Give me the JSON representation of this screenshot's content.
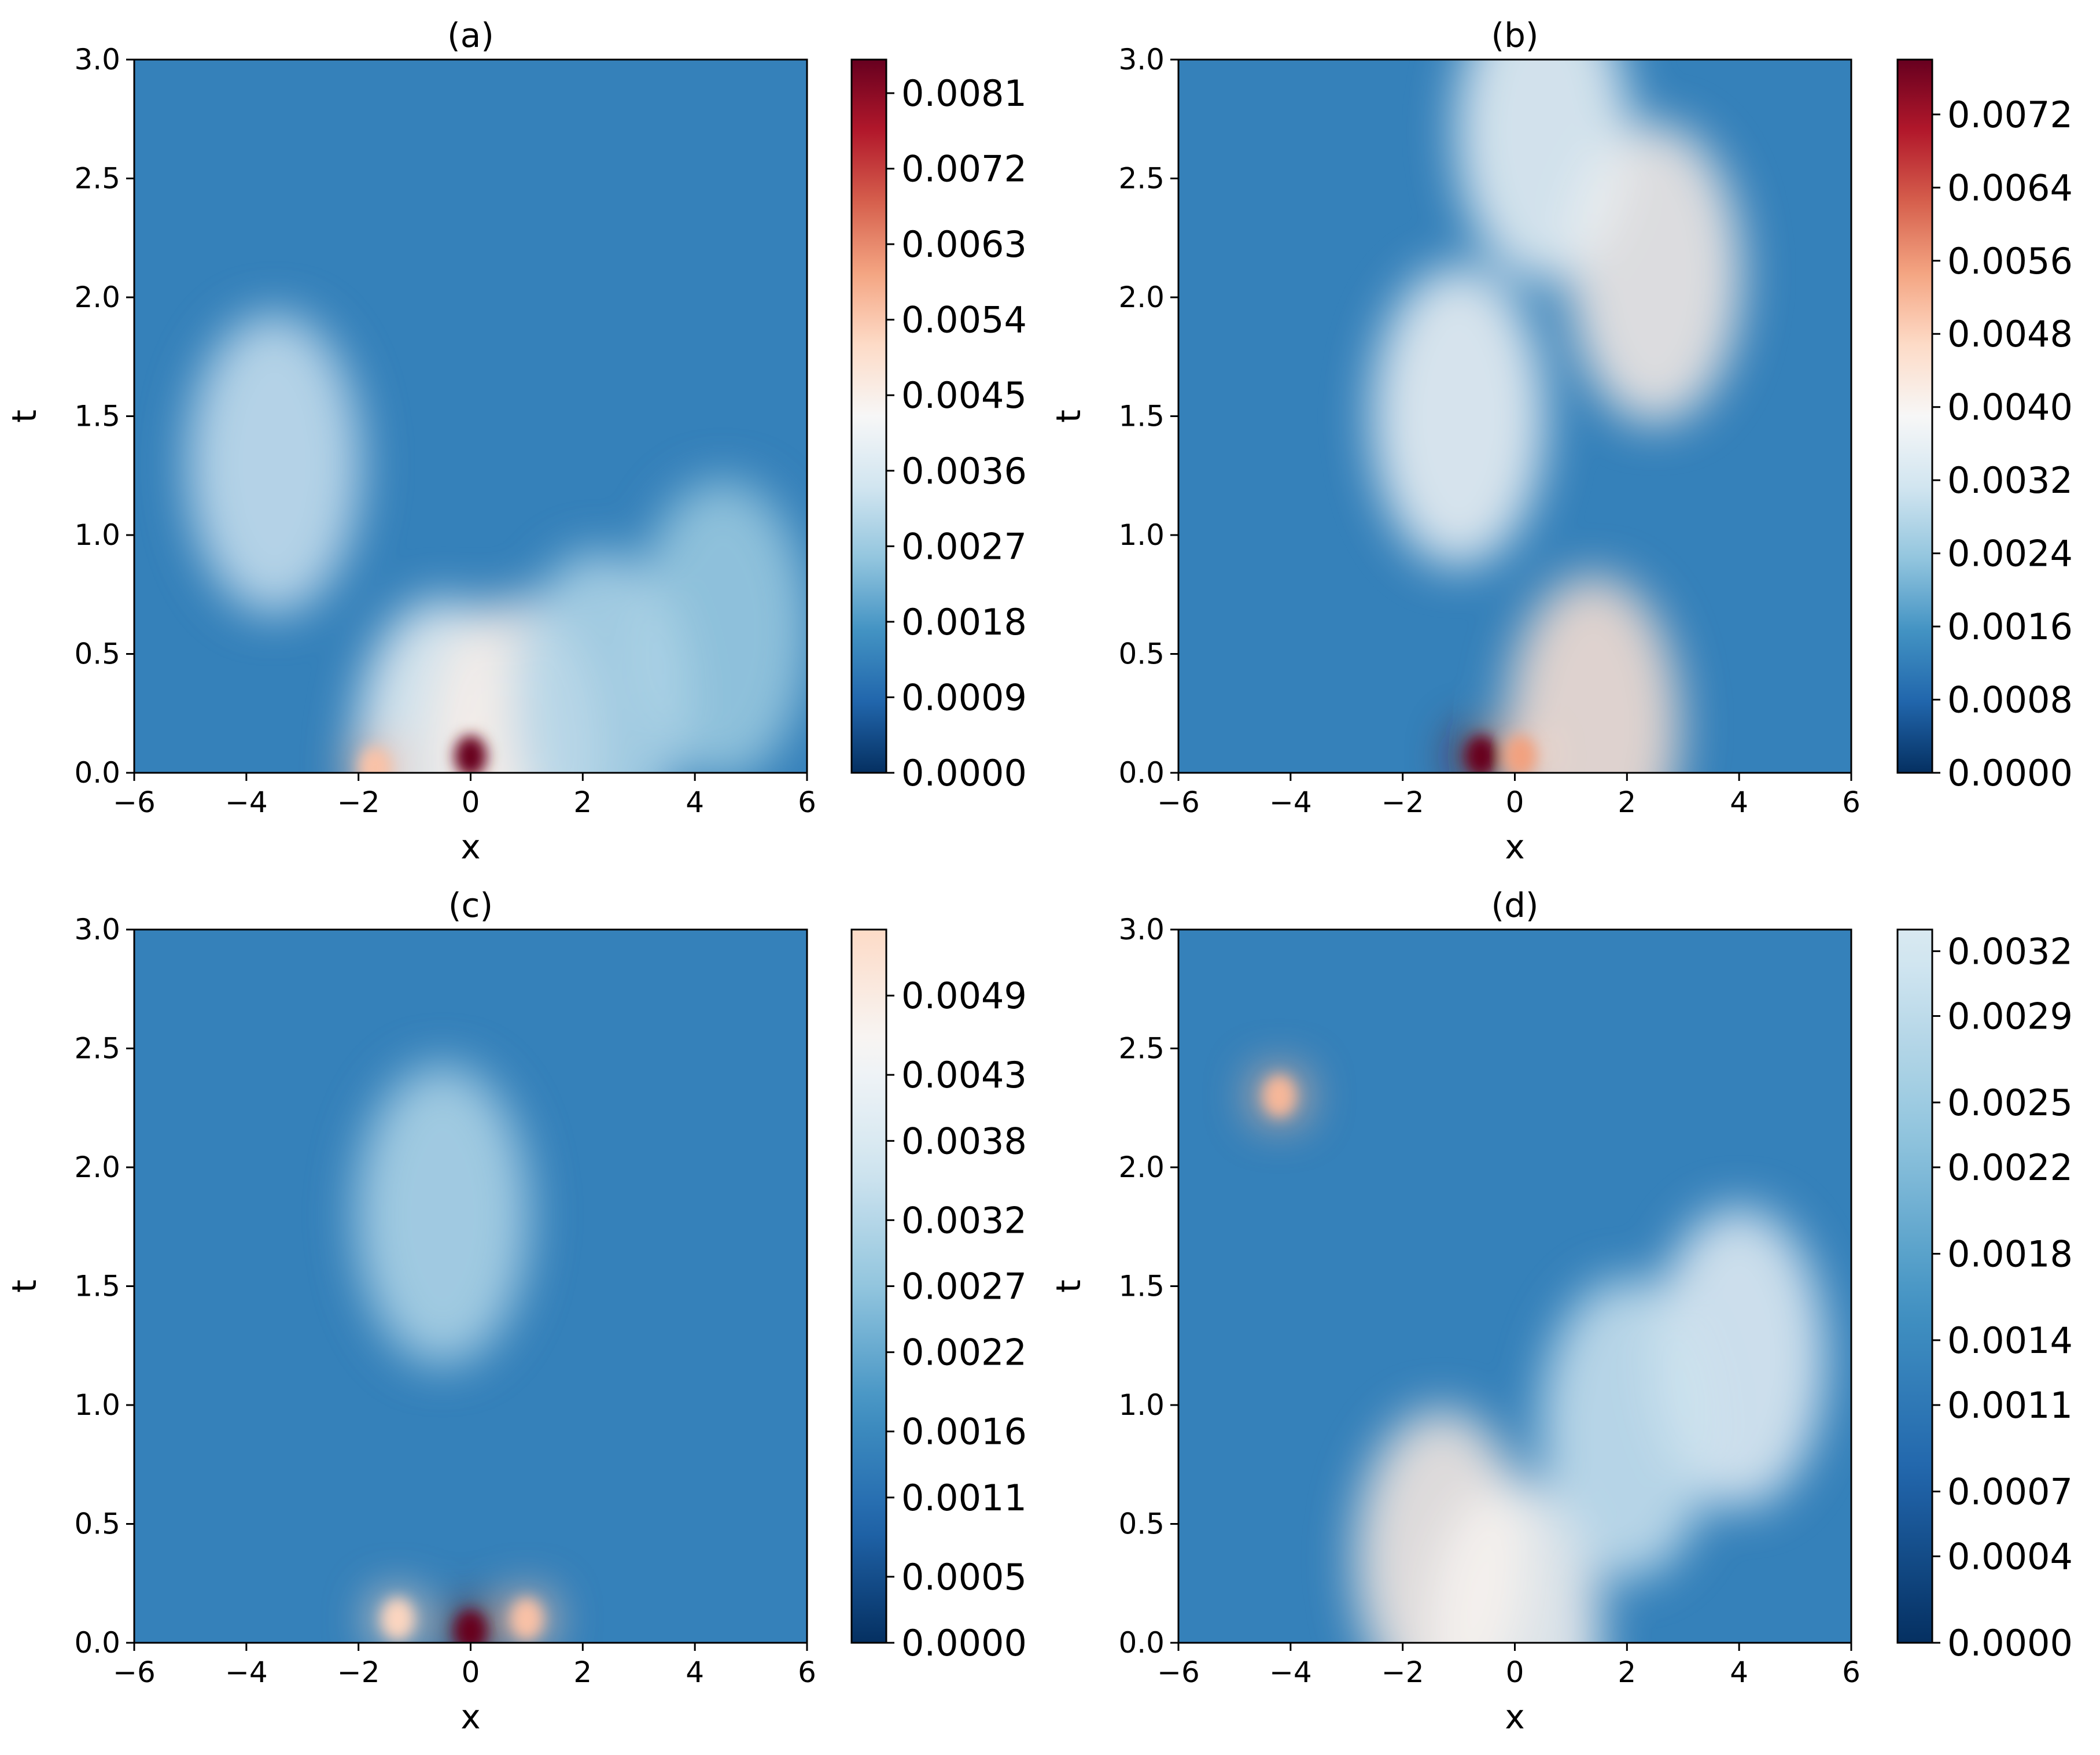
{
  "chart_data": [
    {
      "type": "heatmap",
      "title": "(a)",
      "xlabel": "x",
      "ylabel": "t",
      "xlim": [
        -6,
        6
      ],
      "ylim": [
        0,
        3
      ],
      "x_ticks": [
        "−6",
        "−4",
        "−2",
        "0",
        "2",
        "4",
        "6"
      ],
      "y_ticks": [
        "0.0",
        "0.5",
        "1.0",
        "1.5",
        "2.0",
        "2.5",
        "3.0"
      ],
      "colorbar": {
        "min": 0.0,
        "max": 0.0085,
        "ticks": [
          "0.0000",
          "0.0009",
          "0.0018",
          "0.0027",
          "0.0036",
          "0.0045",
          "0.0054",
          "0.0063",
          "0.0072",
          "0.0081"
        ],
        "colormap": "RdBu_r"
      },
      "hotspots": [
        {
          "x": 0.0,
          "t": 0.07,
          "value": 0.0085
        },
        {
          "x": -0.5,
          "t": 0.1,
          "value": 0.004
        },
        {
          "x": 0.8,
          "t": 0.1,
          "value": 0.0045
        },
        {
          "x": -1.7,
          "t": 0.02,
          "value": 0.0055
        },
        {
          "x": -3.5,
          "t": 1.3,
          "value": 0.0033
        },
        {
          "x": 4.5,
          "t": 0.6,
          "value": 0.0027
        },
        {
          "x": 2.3,
          "t": 0.3,
          "value": 0.003
        }
      ]
    },
    {
      "type": "heatmap",
      "title": "(b)",
      "xlabel": "x",
      "ylabel": "t",
      "xlim": [
        -6,
        6
      ],
      "ylim": [
        0,
        3
      ],
      "x_ticks": [
        "−6",
        "−4",
        "−2",
        "0",
        "2",
        "4",
        "6"
      ],
      "y_ticks": [
        "0.0",
        "0.5",
        "1.0",
        "1.5",
        "2.0",
        "2.5",
        "3.0"
      ],
      "colorbar": {
        "min": 0.0,
        "max": 0.0078,
        "ticks": [
          "0.0000",
          "0.0008",
          "0.0016",
          "0.0024",
          "0.0032",
          "0.0040",
          "0.0048",
          "0.0056",
          "0.0064",
          "0.0072"
        ],
        "colormap": "RdBu_r"
      },
      "hotspots": [
        {
          "x": -0.6,
          "t": 0.07,
          "value": 0.0078
        },
        {
          "x": 0.1,
          "t": 0.07,
          "value": 0.0055
        },
        {
          "x": 1.4,
          "t": 0.2,
          "value": 0.0045
        },
        {
          "x": -1.0,
          "t": 1.5,
          "value": 0.0038
        },
        {
          "x": 2.5,
          "t": 2.1,
          "value": 0.0042
        },
        {
          "x": 0.5,
          "t": 2.7,
          "value": 0.0037
        }
      ]
    },
    {
      "type": "heatmap",
      "title": "(c)",
      "xlabel": "x",
      "ylabel": "t",
      "xlim": [
        -6,
        6
      ],
      "ylim": [
        0,
        3
      ],
      "x_ticks": [
        "−6",
        "−4",
        "−2",
        "0",
        "2",
        "4",
        "6"
      ],
      "y_ticks": [
        "0.0",
        "0.5",
        "1.0",
        "1.5",
        "2.0",
        "2.5",
        "3.0"
      ],
      "colorbar": {
        "min": 0.0,
        "max": 0.0054,
        "ticks": [
          "0.0000",
          "0.0005",
          "0.0011",
          "0.0016",
          "0.0022",
          "0.0027",
          "0.0032",
          "0.0038",
          "0.0043",
          "0.0049"
        ],
        "colormap": "RdBu_r"
      },
      "hotspots": [
        {
          "x": 0.0,
          "t": 0.05,
          "value": 0.0054
        },
        {
          "x": -1.3,
          "t": 0.1,
          "value": 0.0033
        },
        {
          "x": 1.0,
          "t": 0.1,
          "value": 0.0035
        },
        {
          "x": -0.5,
          "t": 1.8,
          "value": 0.0019
        }
      ]
    },
    {
      "type": "heatmap",
      "title": "(d)",
      "xlabel": "x",
      "ylabel": "t",
      "xlim": [
        -6,
        6
      ],
      "ylim": [
        0,
        3
      ],
      "x_ticks": [
        "−6",
        "−4",
        "−2",
        "0",
        "2",
        "4",
        "6"
      ],
      "y_ticks": [
        "0.0",
        "0.5",
        "1.0",
        "1.5",
        "2.0",
        "2.5",
        "3.0"
      ],
      "colorbar": {
        "min": 0.0,
        "max": 0.0033,
        "ticks": [
          "0.0000",
          "0.0004",
          "0.0007",
          "0.0011",
          "0.0014",
          "0.0018",
          "0.0022",
          "0.0025",
          "0.0029",
          "0.0032"
        ],
        "colormap": "RdBu_r"
      },
      "hotspots": [
        {
          "x": -4.2,
          "t": 2.3,
          "value": 0.0022
        },
        {
          "x": -1.3,
          "t": 0.35,
          "value": 0.0018
        },
        {
          "x": 0.0,
          "t": 0.05,
          "value": 0.0017
        },
        {
          "x": 4.0,
          "t": 1.2,
          "value": 0.0015
        },
        {
          "x": 2.0,
          "t": 0.9,
          "value": 0.0013
        }
      ]
    }
  ]
}
